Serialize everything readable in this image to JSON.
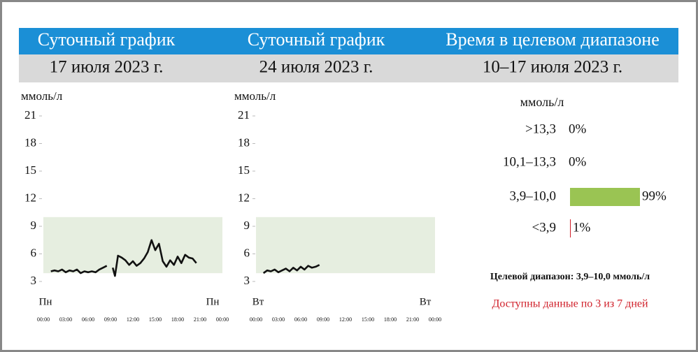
{
  "headers": [
    "Суточный график",
    "Суточный график",
    "Время в целевом диапазоне"
  ],
  "dates": [
    "17 июля 2023 г.",
    "24 июля 2023 г.",
    "10–17 июля 2023 г."
  ],
  "chart_data": [
    {
      "type": "line",
      "y_label": "ммоль/л",
      "day_labels": [
        "Пн",
        "Пн"
      ],
      "ylim": [
        3,
        21
      ],
      "yticks": [
        3,
        6,
        9,
        12,
        15,
        18,
        21
      ],
      "xlim": [
        0,
        24
      ],
      "xticks": [
        {
          "value": 0,
          "label": "00:00"
        },
        {
          "value": 3,
          "label": "03:00"
        },
        {
          "value": 6,
          "label": "06:00"
        },
        {
          "value": 9,
          "label": "09:00"
        },
        {
          "value": 12,
          "label": "12:00"
        },
        {
          "value": 15,
          "label": "15:00"
        },
        {
          "value": 18,
          "label": "18:00"
        },
        {
          "value": 21,
          "label": "21:00"
        },
        {
          "value": 24,
          "label": "00:00"
        }
      ],
      "target_range": [
        3.9,
        10.0
      ],
      "target_color": "#e6eee0",
      "series": [
        {
          "color": "#111111",
          "x": [
            1,
            1.5,
            2,
            2.5,
            3,
            3.5,
            4,
            4.5,
            5,
            5.5,
            6,
            6.5,
            7,
            7.5,
            8,
            8.5,
            9,
            9.3,
            9.6,
            10,
            10.5,
            11,
            11.5,
            12,
            12.5,
            13,
            13.5,
            14,
            14.5,
            15,
            15.5,
            16,
            16.5,
            17,
            17.5,
            18,
            18.5,
            19,
            19.5,
            20,
            20.5
          ],
          "values": [
            4.1,
            4.2,
            4.1,
            4.3,
            4.0,
            4.2,
            4.1,
            4.3,
            3.9,
            4.1,
            4.0,
            4.1,
            4.0,
            4.3,
            4.5,
            4.7,
            null,
            4.5,
            3.6,
            5.8,
            5.6,
            5.3,
            4.8,
            5.2,
            4.7,
            5.0,
            5.5,
            6.2,
            7.5,
            6.4,
            7.1,
            5.2,
            4.6,
            5.3,
            4.8,
            5.7,
            5.0,
            5.9,
            5.6,
            5.5,
            5.0
          ]
        }
      ]
    },
    {
      "type": "line",
      "y_label": "ммоль/л",
      "day_labels": [
        "Вт",
        "Вт"
      ],
      "ylim": [
        3,
        21
      ],
      "yticks": [
        3,
        6,
        9,
        12,
        15,
        18,
        21
      ],
      "xlim": [
        0,
        24
      ],
      "xticks": [
        {
          "value": 0,
          "label": "00:00"
        },
        {
          "value": 3,
          "label": "03:00"
        },
        {
          "value": 6,
          "label": "06:00"
        },
        {
          "value": 9,
          "label": "09:00"
        },
        {
          "value": 12,
          "label": "12:00"
        },
        {
          "value": 15,
          "label": "15:00"
        },
        {
          "value": 18,
          "label": "18:00"
        },
        {
          "value": 21,
          "label": "21:00"
        },
        {
          "value": 24,
          "label": "00:00"
        }
      ],
      "target_range": [
        3.9,
        10.0
      ],
      "target_color": "#e6eee0",
      "series": [
        {
          "color": "#111111",
          "x": [
            1,
            1.5,
            2,
            2.5,
            3,
            3.5,
            4,
            4.5,
            5,
            5.5,
            6,
            6.5,
            7,
            7.5,
            8,
            8.5
          ],
          "values": [
            3.9,
            4.2,
            4.1,
            4.3,
            4.0,
            4.2,
            4.4,
            4.1,
            4.5,
            4.2,
            4.6,
            4.3,
            4.7,
            4.5,
            4.6,
            4.8
          ]
        }
      ]
    },
    {
      "type": "hbar",
      "y_label": "ммоль/л",
      "xlim": [
        0,
        100
      ],
      "categories": [
        ">13,3",
        "10,1–13,3",
        "3,9–10,0",
        "<3,9"
      ],
      "values": [
        0,
        0,
        99,
        1
      ],
      "value_labels": [
        "0%",
        "0%",
        "99%",
        "1%"
      ],
      "colors": [
        "#f5a623",
        "#f0c419",
        "#9ac453",
        "#d0202a"
      ],
      "note": "Целевой диапазон: 3,9–10,0 ммоль/л",
      "warning": "Доступны данные по 3 из 7 дней"
    }
  ]
}
